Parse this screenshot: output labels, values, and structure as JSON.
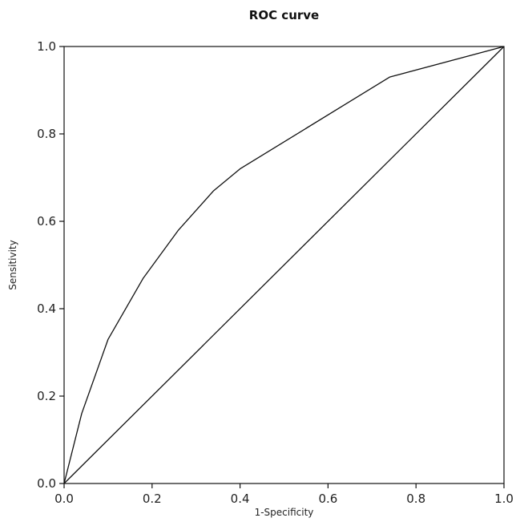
{
  "chart_data": {
    "type": "line",
    "title": "ROC curve",
    "xlabel": "1-Specificity",
    "ylabel": "Sensitivity",
    "xlim": [
      0.0,
      1.0
    ],
    "ylim": [
      0.0,
      1.0
    ],
    "xticks": [
      "0.0",
      "0.2",
      "0.4",
      "0.6",
      "0.8",
      "1.0"
    ],
    "yticks": [
      "0.0",
      "0.2",
      "0.4",
      "0.6",
      "0.8",
      "1.0"
    ],
    "grid": false,
    "legend": "none",
    "line_color": "#111111",
    "series": [
      {
        "x": [
          0.0,
          0.04,
          0.1,
          0.18,
          0.26,
          0.34,
          0.4,
          0.74,
          1.0
        ],
        "y": [
          0.0,
          0.16,
          0.33,
          0.47,
          0.58,
          0.67,
          0.72,
          0.93,
          1.0
        ]
      },
      {
        "x": [
          0.0,
          1.0
        ],
        "y": [
          0.0,
          1.0
        ]
      }
    ]
  }
}
